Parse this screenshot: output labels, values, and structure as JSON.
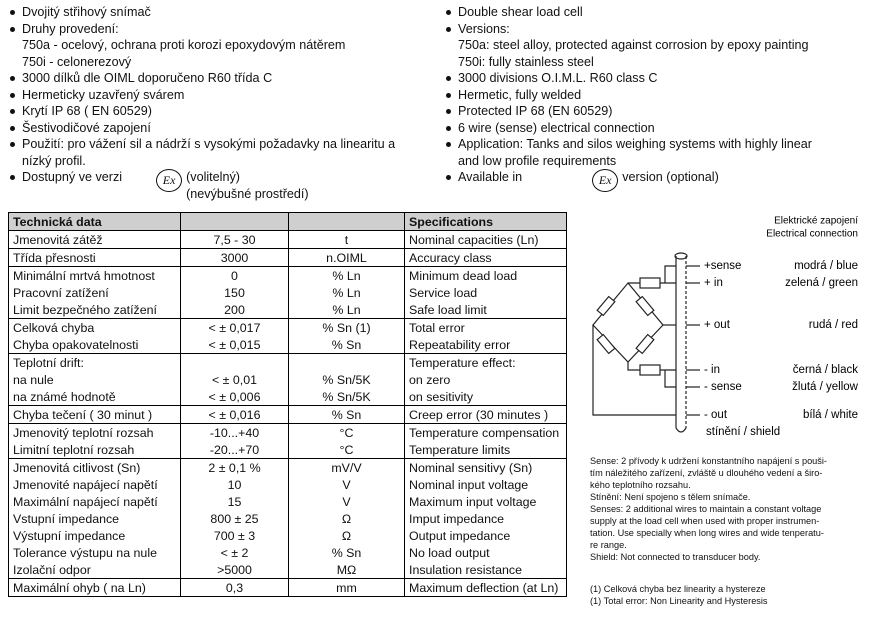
{
  "ex_symbol": "Ex",
  "features_cz": {
    "items": [
      [
        "Dvojitý střihový snímač"
      ],
      [
        "Druhy provedení:",
        "750a - ocelový, ochrana proti korozi epoxydovým nátěrem",
        "750i  - celonerezový"
      ],
      [
        "3000 dílků dle OIML doporučeno R60 třída C"
      ],
      [
        "Hermeticky uzavřený svárem"
      ],
      [
        "Krytí IP 68 ( EN 60529)"
      ],
      [
        "Šestivodičové zapojení"
      ],
      [
        "Použití: pro vážení sil a nádrží s vysokými požadavky na linearitu a",
        "nízký profil."
      ]
    ],
    "ex_item": {
      "text": "Dostupný ve verzi",
      "notes": [
        "(volitelný)",
        "(nevýbušné prostředí)"
      ]
    }
  },
  "features_en": {
    "items": [
      [
        "Double shear load cell"
      ],
      [
        "Versions:",
        "750a: steel alloy, protected against corrosion by epoxy painting",
        "750i: fully stainless steel"
      ],
      [
        "3000 divisions O.I.M.L. R60 class C"
      ],
      [
        "Hermetic, fully welded"
      ],
      [
        "Protected IP 68 (EN 60529)"
      ],
      [
        "6 wire (sense) electrical connection"
      ],
      [
        "Application: Tanks and silos weighing systems with highly linear",
        "and low profile requirements"
      ]
    ],
    "ex_item": {
      "text": "Available in",
      "after": "version (optional)"
    }
  },
  "table": {
    "header": {
      "left": "Technická data",
      "right": "Specifications"
    },
    "groups": [
      [
        [
          "Jmenovitá zátěž",
          "7,5 - 30",
          "t",
          "Nominal capacities (Ln)"
        ]
      ],
      [
        [
          "Třída přesnosti",
          "3000",
          "n.OIML",
          "Accuracy class"
        ]
      ],
      [
        [
          "Minimální mrtvá hmotnost",
          "0",
          "% Ln",
          "Minimum dead load"
        ],
        [
          "Pracovní zatížení",
          "150",
          "% Ln",
          "Service load"
        ],
        [
          "Limit bezpečného zatížení",
          "200",
          "% Ln",
          "Safe load limit"
        ]
      ],
      [
        [
          "Celková chyba",
          "< ± 0,017",
          "% Sn (1)",
          "Total error"
        ],
        [
          "Chyba opakovatelnosti",
          "< ± 0,015",
          "% Sn",
          "Repeatability error"
        ]
      ],
      [
        [
          "Teplotní drift:",
          null,
          null,
          "Temperature effect:"
        ],
        [
          "na nule",
          "< ± 0,01",
          "% Sn/5K",
          "on zero"
        ],
        [
          "na známé hodnotě",
          "< ± 0,006",
          "% Sn/5K",
          "on sesitivity"
        ]
      ],
      [
        [
          "Chyba tečení ( 30 minut )",
          "< ± 0,016",
          "% Sn",
          "Creep error (30 minutes )"
        ]
      ],
      [
        [
          "Jmenovitý teplotní rozsah",
          "-10...+40",
          "°C",
          "Temperature compensation"
        ],
        [
          "Limitní teplotní rozsah",
          "-20...+70",
          "°C",
          "Temperature limits"
        ]
      ],
      [
        [
          "Jmenovitá citlivost (Sn)",
          "2 ± 0,1 %",
          "mV/V",
          "Nominal sensitivy (Sn)"
        ],
        [
          "Jmenovité napájecí napětí",
          "10",
          "V",
          "Nominal input voltage"
        ],
        [
          "Maximální napájecí napětí",
          "15",
          "V",
          "Maximum input voltage"
        ],
        [
          "Vstupní impedance",
          "800 ± 25",
          "Ω",
          "Imput impedance"
        ],
        [
          "Výstupní impedance",
          "700 ± 3",
          "Ω",
          "Output impedance"
        ],
        [
          "Tolerance výstupu na nule",
          "< ± 2",
          "% Sn",
          "No load output"
        ],
        [
          "Izolační odpor",
          ">5000",
          "MΩ",
          "Insulation resistance"
        ]
      ],
      [
        [
          "Maximální ohyb ( na Ln)",
          "0,3",
          "mm",
          "Maximum deflection (at Ln)"
        ]
      ]
    ]
  },
  "wiring": {
    "title": [
      "Elektrické zapojení",
      "Electrical connection"
    ],
    "wires": [
      {
        "name": "+sense",
        "color": "modrá / blue"
      },
      {
        "name": "+ in",
        "color": "zelená / green"
      },
      {
        "name": "+ out",
        "color": "rudá / red"
      },
      {
        "name": "- in",
        "color": "černá / black"
      },
      {
        "name": "- sense",
        "color": "žlutá / yellow"
      },
      {
        "name": "- out",
        "color": "bílá / white"
      }
    ],
    "shield": "stínění / shield"
  },
  "notes": {
    "lines": [
      "Sense: 2 přívody k udržení konstantního napájení  s pouši-",
      "tím náležitého zařízení,  zvláště u dlouhého vedení a širo-",
      "kého teplotního rozsahu.",
      "Stínění: Není spojeno s tělem snímače.",
      "Senses: 2 additional wires to maintain a constant voltage",
      "supply at the load cell when used with proper instrumen-",
      "tation. Use specially when long wires and wide  tenperatu-",
      "re range.",
      "Shield: Not connected to transducer body."
    ],
    "footnotes": [
      "(1) Celková chyba bez linearity a hystereze",
      "(1) Total error: Non Linearity and Hysteresis"
    ]
  }
}
